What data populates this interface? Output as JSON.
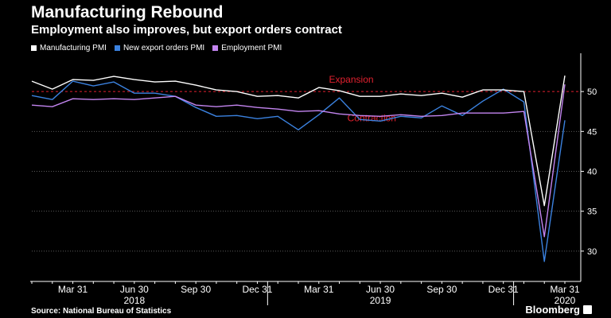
{
  "header": {
    "title": "Manufacturing Rebound",
    "subtitle": "Employment also improves, but export orders contract"
  },
  "legend": {
    "items": [
      {
        "label": "Manufacturing PMI",
        "color": "#ffffff"
      },
      {
        "label": "New export orders PMI",
        "color": "#3b82e0"
      },
      {
        "label": "Employment PMI",
        "color": "#c385f0"
      }
    ]
  },
  "footer": {
    "source": "Source: National Bureau of Statistics",
    "brand": "Bloomberg"
  },
  "chart_data": {
    "type": "line",
    "title": "Manufacturing Rebound",
    "subtitle": "Employment also improves, but export orders contract",
    "x": [
      "2018-01",
      "2018-02",
      "2018-03",
      "2018-04",
      "2018-05",
      "2018-06",
      "2018-07",
      "2018-08",
      "2018-09",
      "2018-10",
      "2018-11",
      "2018-12",
      "2019-01",
      "2019-02",
      "2019-03",
      "2019-04",
      "2019-05",
      "2019-06",
      "2019-07",
      "2019-08",
      "2019-09",
      "2019-10",
      "2019-11",
      "2019-12",
      "2020-01",
      "2020-02",
      "2020-03"
    ],
    "series": [
      {
        "name": "Manufacturing PMI",
        "color": "#ffffff",
        "values": [
          51.3,
          50.3,
          51.5,
          51.4,
          51.9,
          51.5,
          51.2,
          51.3,
          50.8,
          50.2,
          50.0,
          49.4,
          49.5,
          49.2,
          50.5,
          50.1,
          49.4,
          49.4,
          49.7,
          49.5,
          49.8,
          49.3,
          50.2,
          50.2,
          50.0,
          35.7,
          52.0
        ]
      },
      {
        "name": "New export orders PMI",
        "color": "#3b82e0",
        "values": [
          49.5,
          49.0,
          51.3,
          50.7,
          51.2,
          49.8,
          49.8,
          49.4,
          48.0,
          46.9,
          47.0,
          46.6,
          46.9,
          45.2,
          47.1,
          49.2,
          46.5,
          46.3,
          46.9,
          46.7,
          48.2,
          47.0,
          48.8,
          50.3,
          48.7,
          28.7,
          46.4
        ]
      },
      {
        "name": "Employment PMI",
        "color": "#c385f0",
        "values": [
          48.3,
          48.1,
          49.1,
          49.0,
          49.1,
          49.0,
          49.2,
          49.4,
          48.3,
          48.1,
          48.3,
          48.0,
          47.8,
          47.5,
          47.6,
          47.2,
          47.0,
          46.9,
          47.1,
          46.9,
          47.0,
          47.3,
          47.3,
          47.3,
          47.5,
          31.8,
          50.9
        ]
      }
    ],
    "reference_line": {
      "value": 50,
      "color": "#e2212f"
    },
    "annotations": [
      {
        "text": "Expansion",
        "x": "2019-04",
        "y": 51.1,
        "color": "#e2212f"
      },
      {
        "text": "Contraction",
        "x": "2019-05",
        "y": 46.3,
        "color": "#e2212f"
      }
    ],
    "x_ticks": [
      {
        "x": "2018-03",
        "label": "Mar 31"
      },
      {
        "x": "2018-06",
        "label": "Jun 30"
      },
      {
        "x": "2018-09",
        "label": "Sep 30"
      },
      {
        "x": "2018-12",
        "label": "Dec 31"
      },
      {
        "x": "2019-03",
        "label": "Mar 31"
      },
      {
        "x": "2019-06",
        "label": "Jun 30"
      },
      {
        "x": "2019-09",
        "label": "Sep 30"
      },
      {
        "x": "2019-12",
        "label": "Dec 31"
      },
      {
        "x": "2020-03",
        "label": "Mar 31"
      }
    ],
    "x_years": [
      {
        "x": "2018-06",
        "label": "2018"
      },
      {
        "x": "2019-06",
        "label": "2019"
      },
      {
        "x": "2020-03",
        "label": "2020"
      }
    ],
    "year_dividers": [
      "2018-12",
      "2019-12"
    ],
    "y_ticks": [
      30,
      35,
      40,
      45,
      50
    ],
    "ylim": [
      26.2,
      54.3
    ],
    "y_axis_position": "right",
    "grid": "horizontal dotted",
    "legend_position": "top-left",
    "xlabel": "",
    "ylabel": ""
  }
}
